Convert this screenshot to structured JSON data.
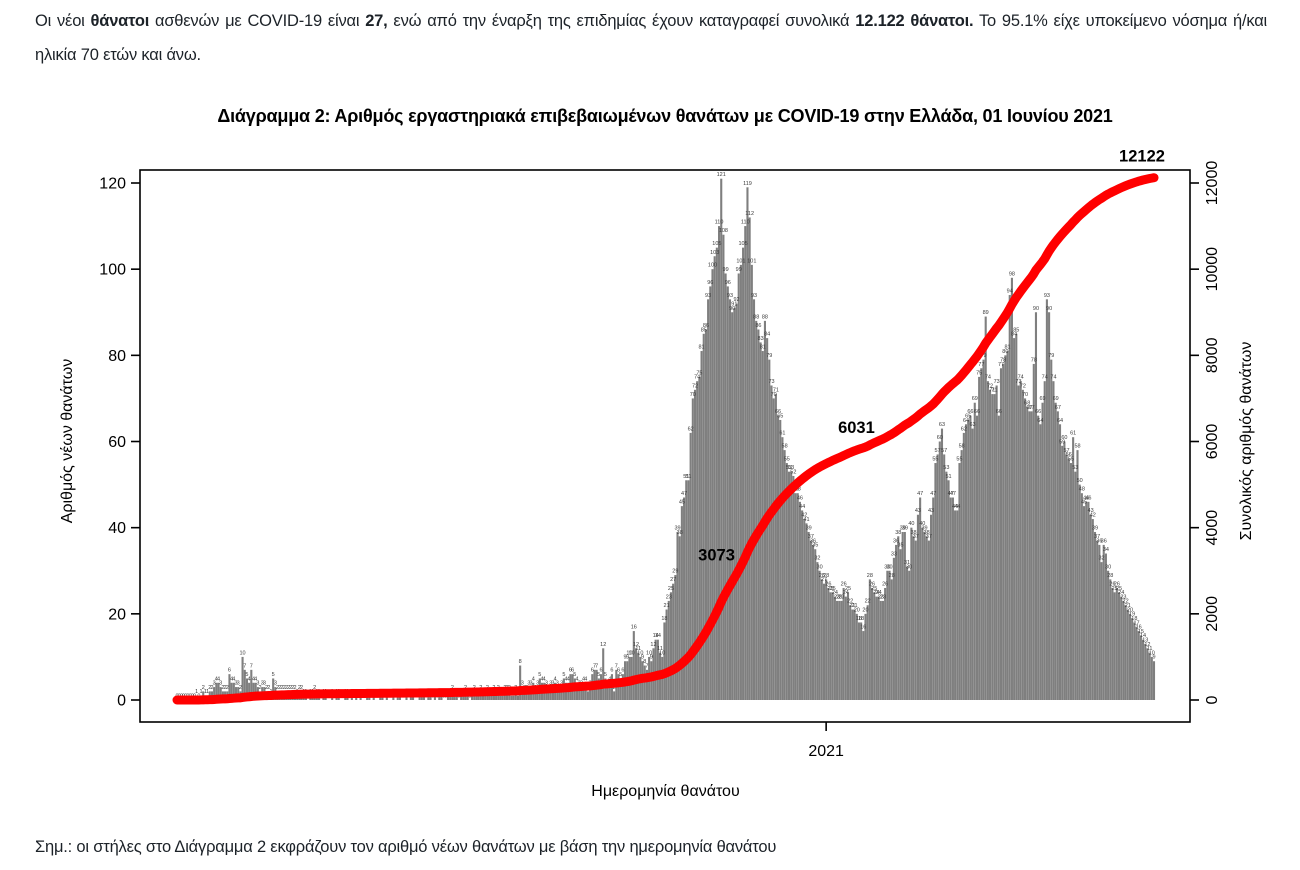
{
  "intro": {
    "s0": "Οι νέοι ",
    "s1": "θάνατοι",
    "s2": " ασθενών με COVID-19 είναι ",
    "s3": "27,",
    "s4": " ενώ από την έναρξη της επιδημίας έχουν καταγραφεί συνολικά ",
    "s5": "12.122 θάνατοι.",
    "s6": " Το 95.1% είχε υποκείμενο νόσημα ή/και ηλικία 70 ετών και άνω."
  },
  "chart": {
    "title": "Διάγραμμα 2: Αριθμός εργαστηριακά επιβεβαιωμένων θανάτων με COVID-19 στην Ελλάδα, 01 Ιουνίου 2021",
    "note": "Σημ.: οι στήλες στο Διάγραμμα 2 εκφράζουν τον αριθμό νέων θανάτων με βάση την ημερομηνία θανάτου"
  },
  "chart_data": {
    "type": "bar",
    "title": "Διάγραμμα 2: Αριθμός εργαστηριακά επιβεβαιωμένων θανάτων με COVID-19 στην Ελλάδα, 01 Ιουνίου 2021",
    "x_axis": {
      "label": "Ημερομηνία θανάτου",
      "tick_labels": [
        "2021"
      ],
      "year_tick_index": 297,
      "range_note": "daily bars, March 2020 - 01 June 2021"
    },
    "left_axis": {
      "label": "Αριθμός νέων θανάτων",
      "ticks": [
        0,
        20,
        40,
        60,
        80,
        100,
        120
      ],
      "ylim": [
        0,
        125
      ]
    },
    "right_axis": {
      "label": "Συνολικός αριθμός θανάτων",
      "ticks": [
        0,
        2000,
        4000,
        6000,
        8000,
        10000,
        12000
      ],
      "ylim": [
        0,
        12500
      ]
    },
    "bars": {
      "name": "new deaths per death date",
      "color": "#7f7f7f",
      "values": [
        0,
        0,
        0,
        0,
        0,
        0,
        0,
        0,
        0,
        1,
        0,
        1,
        2,
        1,
        1,
        2,
        2,
        3,
        4,
        4,
        3,
        2,
        2,
        2,
        6,
        4,
        4,
        3,
        3,
        2,
        10,
        7,
        5,
        4,
        7,
        4,
        4,
        3,
        2,
        3,
        3,
        2,
        2,
        1,
        5,
        3,
        2,
        2,
        2,
        2,
        2,
        2,
        2,
        2,
        2,
        1,
        2,
        2,
        1,
        1,
        0,
        1,
        1,
        2,
        1,
        1,
        0,
        1,
        1,
        0,
        0,
        1,
        0,
        1,
        1,
        0,
        0,
        1,
        1,
        0,
        1,
        0,
        1,
        0,
        1,
        0,
        0,
        1,
        1,
        0,
        1,
        0,
        0,
        1,
        1,
        0,
        1,
        0,
        0,
        1,
        0,
        1,
        1,
        0,
        0,
        1,
        0,
        1,
        1,
        0,
        0,
        1,
        1,
        1,
        0,
        1,
        1,
        0,
        1,
        0,
        1,
        1,
        0,
        0,
        1,
        1,
        2,
        1,
        1,
        0,
        1,
        1,
        2,
        1,
        0,
        1,
        2,
        1,
        1,
        2,
        1,
        1,
        2,
        1,
        1,
        2,
        1,
        2,
        1,
        1,
        2,
        2,
        2,
        1,
        1,
        2,
        1,
        8,
        3,
        2,
        2,
        3,
        3,
        4,
        2,
        3,
        5,
        4,
        4,
        3,
        2,
        3,
        3,
        4,
        3,
        2,
        3,
        5,
        4,
        4,
        6,
        6,
        5,
        4,
        3,
        3,
        4,
        4,
        2,
        3,
        6,
        7,
        7,
        5,
        6,
        12,
        5,
        3,
        4,
        6,
        2,
        7,
        6,
        5,
        6,
        9,
        9,
        10,
        10,
        16,
        12,
        11,
        10,
        9,
        8,
        7,
        10,
        9,
        12,
        14,
        14,
        11,
        10,
        18,
        21,
        23,
        25,
        27,
        29,
        39,
        38,
        45,
        47,
        51,
        51,
        62,
        70,
        72,
        74,
        75,
        81,
        85,
        86,
        93,
        96,
        100,
        103,
        105,
        110,
        121,
        108,
        99,
        96,
        93,
        90,
        91,
        92,
        99,
        101,
        105,
        110,
        119,
        112,
        101,
        93,
        88,
        86,
        83,
        81,
        88,
        84,
        79,
        73,
        70,
        71,
        66,
        65,
        61,
        58,
        55,
        53,
        53,
        52,
        48,
        48,
        46,
        44,
        42,
        41,
        39,
        37,
        36,
        35,
        32,
        30,
        28,
        27,
        28,
        26,
        25,
        25,
        24,
        23,
        23,
        23,
        26,
        24,
        25,
        22,
        21,
        21,
        20,
        18,
        18,
        16,
        20,
        22,
        28,
        26,
        25,
        24,
        24,
        23,
        23,
        26,
        30,
        30,
        28,
        33,
        36,
        38,
        35,
        39,
        39,
        31,
        30,
        40,
        38,
        37,
        43,
        47,
        40,
        39,
        38,
        37,
        43,
        47,
        55,
        57,
        60,
        63,
        57,
        53,
        51,
        47,
        47,
        44,
        44,
        55,
        58,
        62,
        64,
        65,
        66,
        63,
        69,
        66,
        75,
        77,
        79,
        89,
        74,
        72,
        71,
        71,
        73,
        66,
        77,
        78,
        80,
        81,
        94,
        98,
        84,
        85,
        73,
        74,
        72,
        70,
        68,
        67,
        67,
        78,
        90,
        66,
        64,
        69,
        74,
        93,
        90,
        79,
        74,
        69,
        67,
        64,
        59,
        60,
        57,
        56,
        55,
        61,
        53,
        58,
        50,
        48,
        45,
        46,
        46,
        43,
        42,
        39,
        37,
        36,
        32,
        36,
        34,
        30,
        28,
        26,
        25,
        26,
        25,
        24,
        23,
        22,
        21,
        20,
        19,
        18,
        17,
        16,
        15,
        14,
        13,
        12,
        11,
        10,
        9
      ]
    },
    "line": {
      "name": "cumulative deaths",
      "color": "#ff0000",
      "final_total": 12122,
      "milestone_labels": [
        3073,
        6031,
        12122
      ]
    },
    "colors": {
      "bar_gray": "#7f7f7f",
      "line_red": "#ff0000",
      "text": "#000000"
    },
    "legend": "none",
    "grid": "off"
  }
}
